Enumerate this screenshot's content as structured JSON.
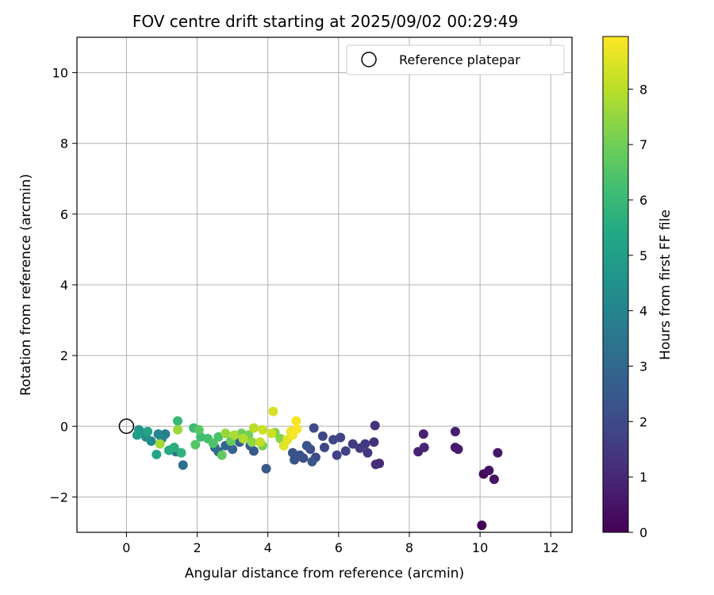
{
  "colors": {
    "background": "#ffffff",
    "axes": "#000000",
    "grid": "#b0b0b0",
    "legend_border": "#cccccc",
    "reference_marker": "#000000"
  },
  "chart_data": {
    "type": "scatter",
    "title": "FOV centre drift starting at 2025/09/02 00:29:49",
    "xlabel": "Angular distance from reference (arcmin)",
    "ylabel": "Rotation from reference (arcmin)",
    "xlim": [
      -1.4,
      12.6
    ],
    "ylim": [
      -3.0,
      11.0
    ],
    "xticks": [
      0,
      2,
      4,
      6,
      8,
      10,
      12
    ],
    "yticks": [
      -2,
      0,
      2,
      4,
      6,
      8,
      10
    ],
    "grid": true,
    "legend": {
      "position": "top-right",
      "entries": [
        {
          "label": "Reference platepar",
          "marker": "hollow-circle"
        }
      ]
    },
    "reference_point": {
      "x": 0,
      "y": 0
    },
    "colorbar": {
      "label": "Hours from first FF file",
      "colormap": "viridis",
      "range": [
        0,
        8.95
      ],
      "ticks": [
        0,
        1,
        2,
        3,
        4,
        5,
        6,
        7,
        8
      ]
    },
    "series": [
      {
        "x": [
          10.05,
          10.1,
          10.25,
          10.4,
          10.5,
          9.3,
          9.38,
          9.3,
          8.4,
          8.25,
          8.42,
          7.15,
          7.05,
          7.0,
          7.03,
          6.82,
          6.75,
          6.6,
          6.4,
          6.2,
          6.05,
          5.95,
          5.85,
          5.6,
          5.55,
          5.35,
          5.3,
          5.2,
          5.0,
          4.9,
          4.75,
          4.7,
          5.1,
          5.25,
          3.95,
          3.6,
          3.5,
          3.2,
          3.0,
          2.8,
          2.6,
          2.5,
          1.6,
          1.4,
          1.3,
          1.1,
          1.0,
          0.9,
          0.7,
          0.55,
          0.45,
          0.35,
          0.3,
          0.6,
          0.85,
          1.2,
          1.35,
          1.55,
          1.45,
          1.9,
          2.1,
          2.3,
          2.6,
          2.45,
          1.95,
          2.05,
          2.7,
          2.95,
          3.25,
          3.45,
          3.85,
          4.2,
          4.35,
          3.55,
          2.8,
          1.45,
          0.95,
          3.05,
          3.3,
          3.6,
          3.78,
          3.85,
          4.1,
          4.15,
          4.45,
          4.55,
          4.65,
          4.7,
          4.8,
          4.82
        ],
        "y": [
          -2.8,
          -1.35,
          -1.25,
          -1.5,
          -0.75,
          -0.6,
          -0.65,
          -0.15,
          -0.22,
          -0.72,
          -0.6,
          -1.05,
          -1.08,
          -0.45,
          0.02,
          -0.75,
          -0.5,
          -0.62,
          -0.5,
          -0.7,
          -0.32,
          -0.82,
          -0.38,
          -0.6,
          -0.28,
          -0.88,
          -0.05,
          -0.65,
          -0.9,
          -0.82,
          -0.95,
          -0.75,
          -0.55,
          -1.0,
          -1.2,
          -0.7,
          -0.55,
          -0.45,
          -0.65,
          -0.55,
          -0.72,
          -0.6,
          -1.1,
          -0.72,
          -0.65,
          -0.22,
          -0.35,
          -0.22,
          -0.42,
          -0.3,
          -0.18,
          -0.1,
          -0.25,
          -0.15,
          -0.8,
          -0.68,
          -0.6,
          -0.75,
          0.15,
          -0.05,
          -0.3,
          -0.35,
          -0.3,
          -0.48,
          -0.52,
          -0.1,
          -0.82,
          -0.42,
          -0.2,
          -0.25,
          -0.55,
          -0.18,
          -0.35,
          -0.45,
          -0.2,
          -0.1,
          -0.5,
          -0.25,
          -0.35,
          -0.05,
          -0.45,
          -0.1,
          -0.2,
          0.42,
          -0.55,
          -0.38,
          -0.15,
          -0.25,
          0.15,
          -0.08
        ],
        "c": [
          0.0,
          0.2,
          0.35,
          0.5,
          0.55,
          0.6,
          0.7,
          0.75,
          0.8,
          0.85,
          0.95,
          1.05,
          1.15,
          1.25,
          1.3,
          1.4,
          1.5,
          1.55,
          1.6,
          1.7,
          1.75,
          1.8,
          1.85,
          1.9,
          1.95,
          2.0,
          2.05,
          2.1,
          2.15,
          2.2,
          2.25,
          2.3,
          2.35,
          2.4,
          2.45,
          2.55,
          2.65,
          2.75,
          2.85,
          2.95,
          3.05,
          3.15,
          3.25,
          3.35,
          3.55,
          3.75,
          3.9,
          4.05,
          4.2,
          4.4,
          4.6,
          4.8,
          5.0,
          5.15,
          5.3,
          5.45,
          5.6,
          5.75,
          5.9,
          6.05,
          6.15,
          6.25,
          6.35,
          6.45,
          6.55,
          6.65,
          6.75,
          6.85,
          6.95,
          7.05,
          7.15,
          7.25,
          7.35,
          7.45,
          7.55,
          7.6,
          7.7,
          7.8,
          7.9,
          8.0,
          8.1,
          8.2,
          8.3,
          8.4,
          8.5,
          8.6,
          8.7,
          8.8,
          8.85,
          8.9
        ]
      }
    ]
  }
}
